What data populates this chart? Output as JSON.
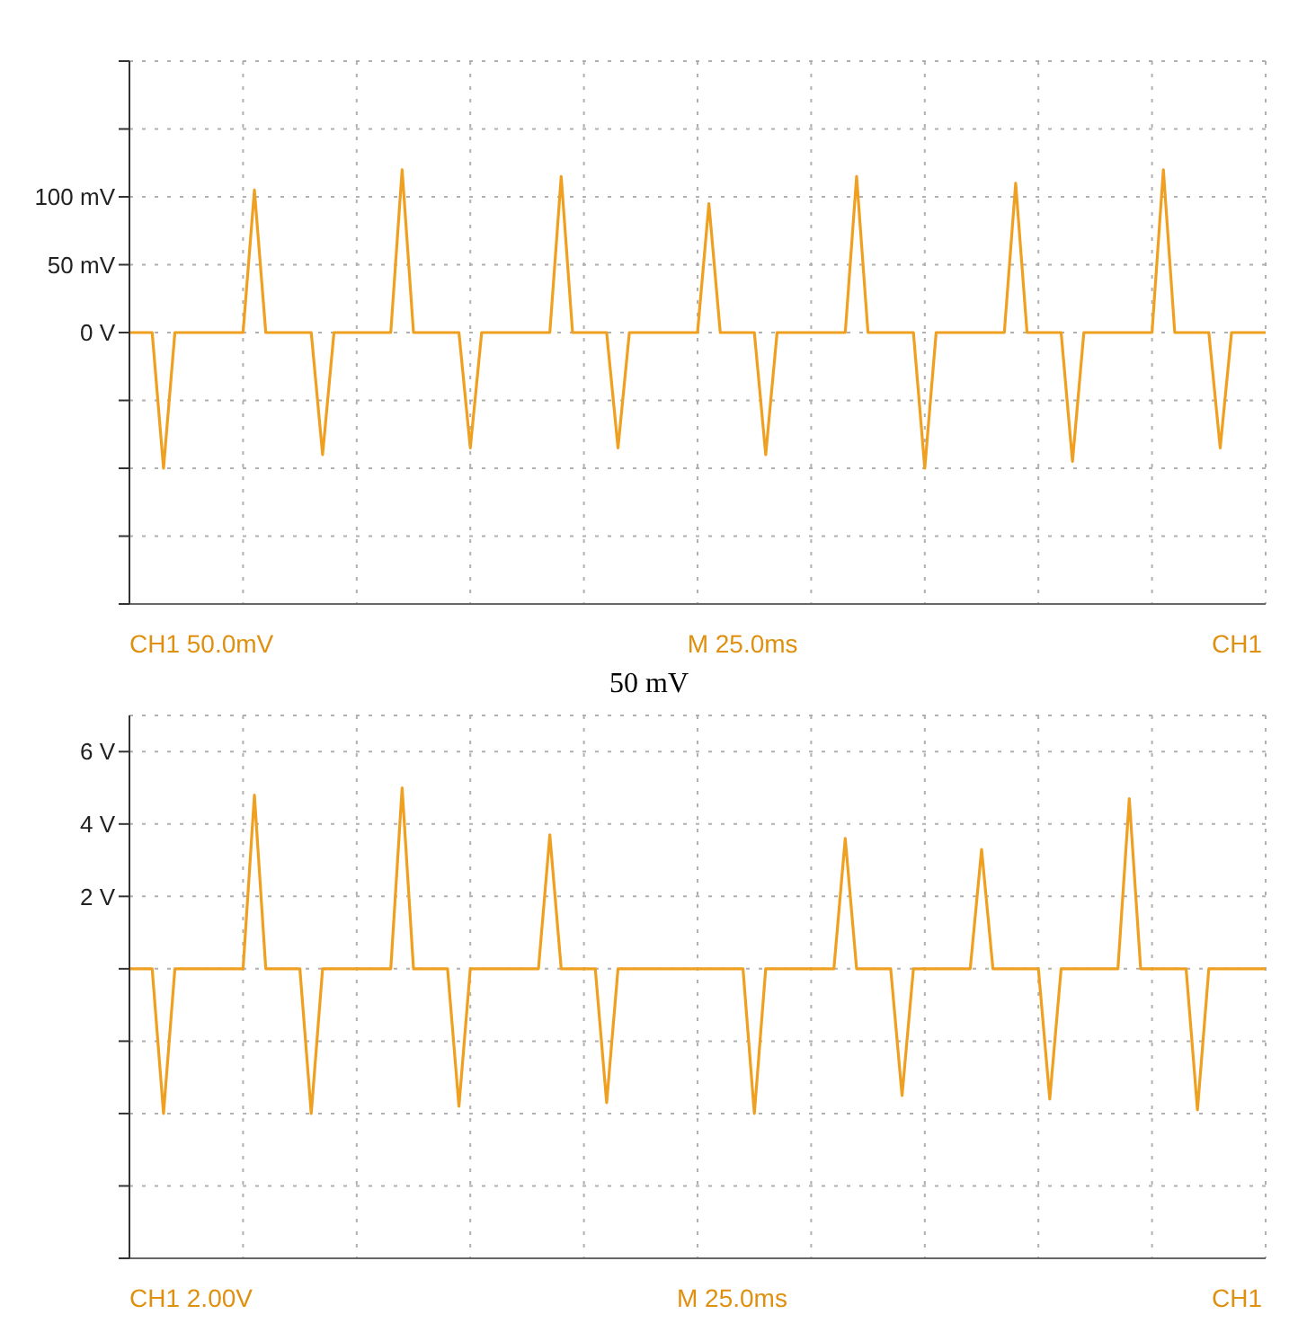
{
  "chart_data": [
    {
      "type": "line",
      "annotations": [
        "CH1 50.0mV",
        "M 25.0ms",
        "CH1"
      ],
      "categories": [
        null,
        null,
        null,
        null,
        null,
        null,
        null,
        null,
        null,
        null,
        null,
        null,
        null,
        null,
        null,
        null,
        null,
        null,
        null,
        null,
        null,
        null,
        null,
        null,
        null,
        null,
        null,
        null,
        null,
        null,
        null,
        null,
        null,
        null,
        null,
        null,
        null,
        null,
        null,
        null,
        null,
        null,
        null,
        null,
        null,
        null,
        null,
        null,
        null,
        null,
        null,
        null,
        null,
        null,
        null,
        null,
        null,
        null,
        null,
        null,
        null,
        null,
        null,
        null,
        null,
        null,
        null,
        null,
        null,
        null,
        null,
        null,
        null,
        null,
        null,
        null,
        null,
        null,
        null,
        null,
        null,
        null,
        null,
        null,
        null,
        null,
        null,
        null,
        null,
        null,
        null,
        null,
        null,
        null,
        null,
        null,
        null,
        null,
        null,
        null,
        null
      ],
      "ylim": [
        -200,
        200
      ],
      "yticks": [
        {
          "value": -200,
          "label": null
        },
        {
          "value": -150,
          "label": null
        },
        {
          "value": -100,
          "label": null
        },
        {
          "value": -50,
          "label": null
        },
        {
          "value": 0,
          "label": "0 V"
        },
        {
          "value": 50,
          "label": "50 mV"
        },
        {
          "value": 100,
          "label": "100 mV"
        },
        {
          "value": 150,
          "label": null
        },
        {
          "value": 200,
          "label": null
        }
      ],
      "tick_labels": "y",
      "grid": true,
      "series": [
        {
          "color": "#f0a020",
          "values": [
            0,
            0,
            0,
            -100,
            0,
            0,
            0,
            0,
            0,
            0,
            0,
            105,
            0,
            0,
            0,
            0,
            0,
            -90,
            0,
            0,
            0,
            0,
            0,
            0,
            120,
            0,
            0,
            0,
            0,
            0,
            -85,
            0,
            0,
            0,
            0,
            0,
            0,
            0,
            115,
            0,
            0,
            0,
            0,
            -85,
            0,
            0,
            0,
            0,
            0,
            0,
            0,
            95,
            0,
            0,
            0,
            0,
            -90,
            0,
            0,
            0,
            0,
            0,
            0,
            0,
            115,
            0,
            0,
            0,
            0,
            0,
            -100,
            0,
            0,
            0,
            0,
            0,
            0,
            0,
            110,
            0,
            0,
            0,
            0,
            -95,
            0,
            0,
            0,
            0,
            0,
            0,
            0,
            120,
            0,
            0,
            0,
            0,
            -85,
            0,
            0,
            0,
            0
          ]
        }
      ]
    },
    {
      "type": "line",
      "title": "50 mV",
      "annotations": [
        "CH1 2.00V",
        "M 25.0ms",
        "CH1"
      ],
      "categories": [
        null,
        null,
        null,
        null,
        null,
        null,
        null,
        null,
        null,
        null,
        null,
        null,
        null,
        null,
        null,
        null,
        null,
        null,
        null,
        null,
        null,
        null,
        null,
        null,
        null,
        null,
        null,
        null,
        null,
        null,
        null,
        null,
        null,
        null,
        null,
        null,
        null,
        null,
        null,
        null,
        null,
        null,
        null,
        null,
        null,
        null,
        null,
        null,
        null,
        null,
        null,
        null,
        null,
        null,
        null,
        null,
        null,
        null,
        null,
        null,
        null,
        null,
        null,
        null,
        null,
        null,
        null,
        null,
        null,
        null,
        null,
        null,
        null,
        null,
        null,
        null,
        null,
        null,
        null,
        null,
        null,
        null,
        null,
        null,
        null,
        null,
        null,
        null,
        null,
        null,
        null,
        null,
        null,
        null,
        null,
        null,
        null,
        null,
        null,
        null,
        null
      ],
      "ylim": [
        -8,
        7
      ],
      "yticks": [
        {
          "value": -8,
          "label": null
        },
        {
          "value": -6,
          "label": null
        },
        {
          "value": -4,
          "label": null
        },
        {
          "value": -2,
          "label": null
        },
        {
          "value": 0,
          "label": null
        },
        {
          "value": 2,
          "label": "2 V"
        },
        {
          "value": 4,
          "label": "4 V"
        },
        {
          "value": 6,
          "label": "6 V"
        }
      ],
      "tick_labels": "y",
      "grid": true,
      "series": [
        {
          "color": "#f0a020",
          "values": [
            0,
            0,
            0,
            -4.0,
            0,
            0,
            0,
            0,
            0,
            0,
            0,
            4.8,
            0,
            0,
            0,
            0,
            -4.0,
            0,
            0,
            0,
            0,
            0,
            0,
            0,
            5.0,
            0,
            0,
            0,
            0,
            -3.8,
            0,
            0,
            0,
            0,
            0,
            0,
            0,
            3.7,
            0,
            0,
            0,
            0,
            -3.7,
            0,
            0,
            0,
            0,
            0,
            0,
            0,
            0,
            0,
            0,
            0,
            0,
            -4.0,
            0,
            0,
            0,
            0,
            0,
            0,
            0,
            3.6,
            0,
            0,
            0,
            0,
            -3.5,
            0,
            0,
            0,
            0,
            0,
            0,
            3.3,
            0,
            0,
            0,
            0,
            0,
            -3.6,
            0,
            0,
            0,
            0,
            0,
            0,
            4.7,
            0,
            0,
            0,
            0,
            0,
            -3.9,
            0,
            0,
            0,
            0,
            0,
            0
          ]
        }
      ]
    }
  ]
}
